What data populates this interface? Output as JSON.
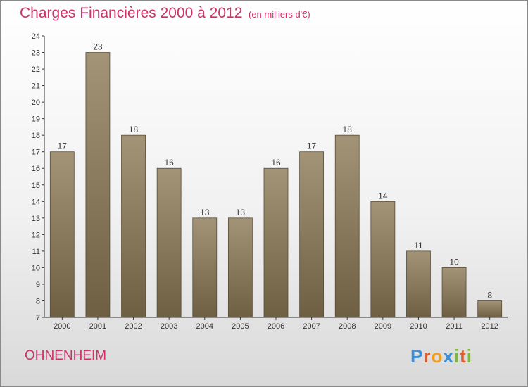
{
  "header": {
    "title": "Charges Financières 2000 à 2012",
    "subtitle": "(en milliers d'€)"
  },
  "footer": {
    "commune": "OHNENHEIM",
    "logo_letters": [
      {
        "ch": "P",
        "color": "#3a8fd8"
      },
      {
        "ch": "r",
        "color": "#e05a2a"
      },
      {
        "ch": "o",
        "color": "#f0a020"
      },
      {
        "ch": "x",
        "color": "#3a8fd8"
      },
      {
        "ch": "i",
        "color": "#7abf2a"
      },
      {
        "ch": "t",
        "color": "#e05a2a"
      },
      {
        "ch": "i",
        "color": "#7abf2a"
      }
    ]
  },
  "chart_data": {
    "type": "bar",
    "categories": [
      "2000",
      "2001",
      "2002",
      "2003",
      "2004",
      "2005",
      "2006",
      "2007",
      "2008",
      "2009",
      "2010",
      "2011",
      "2012"
    ],
    "values": [
      17,
      23,
      18,
      16,
      13,
      13,
      16,
      17,
      18,
      14,
      11,
      10,
      8
    ],
    "ylim": [
      7,
      24
    ],
    "yticks": [
      7,
      8,
      9,
      10,
      11,
      12,
      13,
      14,
      15,
      16,
      17,
      18,
      19,
      20,
      21,
      22,
      23,
      24
    ],
    "grid": false,
    "colors": {
      "bar_top": "#a39478",
      "bar_bottom": "#6e5f42",
      "bar_edge": "#5a4d35",
      "axis": "#333333",
      "text": "#333333"
    }
  }
}
